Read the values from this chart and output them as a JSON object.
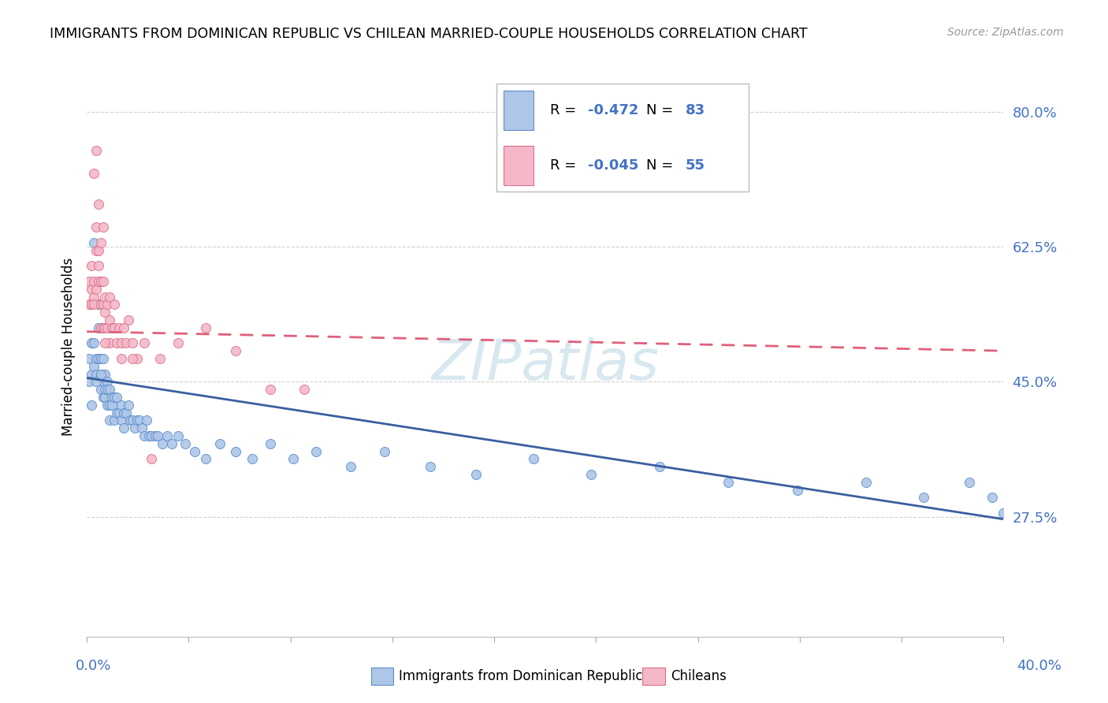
{
  "title": "IMMIGRANTS FROM DOMINICAN REPUBLIC VS CHILEAN MARRIED-COUPLE HOUSEHOLDS CORRELATION CHART",
  "source": "Source: ZipAtlas.com",
  "legend_blue_r": "-0.472",
  "legend_blue_n": "83",
  "legend_pink_r": "-0.045",
  "legend_pink_n": "55",
  "legend_label_blue": "Immigrants from Dominican Republic",
  "legend_label_pink": "Chileans",
  "blue_color": "#aec6e8",
  "pink_color": "#f4b8c8",
  "blue_edge_color": "#5b8fc9",
  "pink_edge_color": "#d9708a",
  "blue_line_color": "#3a5fa0",
  "pink_line_color": "#e0607a",
  "background_color": "#ffffff",
  "grid_color": "#d0d0d0",
  "x_min": 0.0,
  "x_max": 0.4,
  "y_min": 0.12,
  "y_max": 0.87,
  "ytick_vals": [
    0.275,
    0.45,
    0.625,
    0.8
  ],
  "ytick_labels": [
    "27.5%",
    "45.0%",
    "62.5%",
    "80.0%"
  ],
  "blue_x": [
    0.001,
    0.002,
    0.002,
    0.003,
    0.003,
    0.003,
    0.004,
    0.004,
    0.005,
    0.005,
    0.005,
    0.006,
    0.006,
    0.006,
    0.007,
    0.007,
    0.007,
    0.007,
    0.008,
    0.008,
    0.008,
    0.009,
    0.009,
    0.009,
    0.01,
    0.01,
    0.01,
    0.011,
    0.011,
    0.012,
    0.012,
    0.013,
    0.013,
    0.014,
    0.015,
    0.015,
    0.016,
    0.016,
    0.017,
    0.018,
    0.019,
    0.02,
    0.021,
    0.022,
    0.023,
    0.024,
    0.025,
    0.026,
    0.027,
    0.028,
    0.03,
    0.031,
    0.033,
    0.035,
    0.037,
    0.04,
    0.043,
    0.047,
    0.052,
    0.058,
    0.065,
    0.072,
    0.08,
    0.09,
    0.1,
    0.115,
    0.13,
    0.15,
    0.17,
    0.195,
    0.22,
    0.25,
    0.28,
    0.31,
    0.34,
    0.365,
    0.385,
    0.395,
    0.4,
    0.001,
    0.002,
    0.004,
    0.006
  ],
  "blue_y": [
    0.48,
    0.5,
    0.46,
    0.5,
    0.47,
    0.63,
    0.46,
    0.48,
    0.52,
    0.48,
    0.55,
    0.46,
    0.44,
    0.48,
    0.52,
    0.48,
    0.43,
    0.45,
    0.46,
    0.43,
    0.44,
    0.45,
    0.42,
    0.44,
    0.44,
    0.42,
    0.4,
    0.43,
    0.42,
    0.43,
    0.4,
    0.43,
    0.41,
    0.41,
    0.42,
    0.4,
    0.41,
    0.39,
    0.41,
    0.42,
    0.4,
    0.4,
    0.39,
    0.4,
    0.4,
    0.39,
    0.38,
    0.4,
    0.38,
    0.38,
    0.38,
    0.38,
    0.37,
    0.38,
    0.37,
    0.38,
    0.37,
    0.36,
    0.35,
    0.37,
    0.36,
    0.35,
    0.37,
    0.35,
    0.36,
    0.34,
    0.36,
    0.34,
    0.33,
    0.35,
    0.33,
    0.34,
    0.32,
    0.31,
    0.32,
    0.3,
    0.32,
    0.3,
    0.28,
    0.45,
    0.42,
    0.45,
    0.46
  ],
  "pink_x": [
    0.001,
    0.001,
    0.002,
    0.002,
    0.002,
    0.003,
    0.003,
    0.003,
    0.004,
    0.004,
    0.004,
    0.005,
    0.005,
    0.005,
    0.006,
    0.006,
    0.006,
    0.007,
    0.007,
    0.007,
    0.008,
    0.008,
    0.008,
    0.009,
    0.009,
    0.01,
    0.01,
    0.01,
    0.011,
    0.012,
    0.012,
    0.013,
    0.014,
    0.015,
    0.016,
    0.017,
    0.018,
    0.02,
    0.022,
    0.025,
    0.028,
    0.032,
    0.04,
    0.052,
    0.065,
    0.08,
    0.095,
    0.003,
    0.004,
    0.005,
    0.006,
    0.007,
    0.008,
    0.015,
    0.02
  ],
  "pink_y": [
    0.55,
    0.58,
    0.57,
    0.55,
    0.6,
    0.58,
    0.56,
    0.55,
    0.62,
    0.65,
    0.57,
    0.6,
    0.58,
    0.62,
    0.58,
    0.55,
    0.52,
    0.58,
    0.55,
    0.52,
    0.54,
    0.52,
    0.56,
    0.52,
    0.55,
    0.5,
    0.53,
    0.56,
    0.52,
    0.52,
    0.55,
    0.5,
    0.52,
    0.5,
    0.52,
    0.5,
    0.53,
    0.5,
    0.48,
    0.5,
    0.35,
    0.48,
    0.5,
    0.52,
    0.49,
    0.44,
    0.44,
    0.72,
    0.75,
    0.68,
    0.63,
    0.65,
    0.5,
    0.48,
    0.48
  ],
  "watermark": "ZIPatlas",
  "watermark_color": "#d8e8f0",
  "r_value_color": "#4472c4",
  "n_value_color": "#4472c4",
  "axis_label_color": "#4472c4",
  "ylabel": "Married-couple Households"
}
